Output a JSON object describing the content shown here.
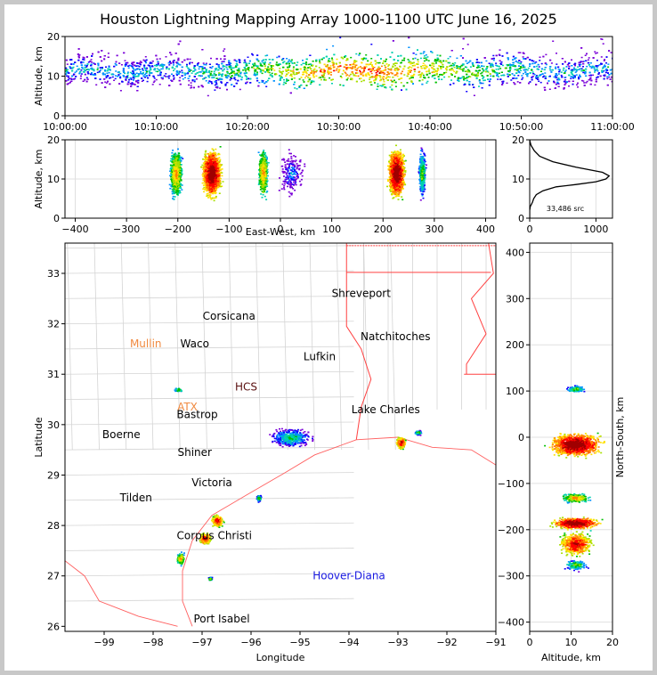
{
  "title": "Houston Lightning Mapping Array 1000-1100 UTC June 16, 2025",
  "chart_data": [
    {
      "type": "heatmap",
      "panel": "altitude-vs-time",
      "ylabel": "Altitude, km",
      "xlim": [
        "10:00:00",
        "11:00:00"
      ],
      "ylim": [
        0,
        20
      ],
      "x_ticks": [
        "10:00:00",
        "10:10:00",
        "10:20:00",
        "10:30:00",
        "10:40:00",
        "10:50:00",
        "11:00:00"
      ],
      "y_ticks": [
        "0",
        "10",
        "20"
      ],
      "band_altitude_km": [
        7,
        16
      ]
    },
    {
      "type": "heatmap",
      "panel": "altitude-vs-east-west",
      "xlabel": "East-West, km",
      "ylabel": "Altitude, km",
      "xlim": [
        -420,
        420
      ],
      "ylim": [
        0,
        20
      ],
      "x_ticks": [
        "−400",
        "−300",
        "−200",
        "−100",
        "0",
        "100",
        "200",
        "300",
        "400"
      ],
      "y_ticks": [
        "0",
        "10",
        "20"
      ],
      "cells_ew_km": [
        -205,
        -135,
        -35,
        225,
        275,
        20
      ]
    },
    {
      "type": "line",
      "panel": "altitude-histogram",
      "annotation": "33,486 src",
      "xlim": [
        0,
        1250
      ],
      "ylim": [
        0,
        20
      ],
      "x_ticks": [
        "0",
        "1000"
      ],
      "y_ticks": [
        "0",
        "10",
        "20"
      ],
      "x": [
        0,
        0,
        10,
        40,
        60,
        100,
        200,
        400,
        700,
        1000,
        1150,
        1200,
        1100,
        700,
        350,
        150,
        70,
        20,
        5,
        0
      ],
      "y": [
        0,
        2,
        3,
        4,
        5,
        6,
        7,
        8,
        8.6,
        9.3,
        10,
        10.8,
        11.7,
        13,
        14.4,
        15.8,
        17.2,
        18.6,
        19.5,
        20
      ]
    },
    {
      "type": "scatter",
      "panel": "plan-view-map",
      "xlabel": "Longitude",
      "ylabel": "Latitude",
      "xlim": [
        -99.8,
        -91
      ],
      "ylim": [
        25.9,
        33.6
      ],
      "x_ticks": [
        "−99",
        "−98",
        "−97",
        "−96",
        "−95",
        "−94",
        "−93",
        "−92",
        "−91"
      ],
      "y_ticks": [
        "26",
        "27",
        "28",
        "29",
        "30",
        "31",
        "32",
        "33"
      ],
      "cities": [
        {
          "name": "Shreveport",
          "lon": -93.75,
          "lat": 32.6,
          "color": "#000000"
        },
        {
          "name": "Corsicana",
          "lon": -96.45,
          "lat": 32.15,
          "color": "#000000"
        },
        {
          "name": "Natchitoches",
          "lon": -93.05,
          "lat": 31.75,
          "color": "#000000"
        },
        {
          "name": "Mullin",
          "lon": -98.15,
          "lat": 31.6,
          "color": "#f08a40"
        },
        {
          "name": "Waco",
          "lon": -97.15,
          "lat": 31.6,
          "color": "#000000"
        },
        {
          "name": "Lufkin",
          "lon": -94.6,
          "lat": 31.35,
          "color": "#000000"
        },
        {
          "name": "HCS",
          "lon": -96.1,
          "lat": 30.75,
          "color": "#5a1010"
        },
        {
          "name": "ATX",
          "lon": -97.3,
          "lat": 30.35,
          "color": "#f08a40"
        },
        {
          "name": "Bastrop",
          "lon": -97.1,
          "lat": 30.2,
          "color": "#000000"
        },
        {
          "name": "Lake Charles",
          "lon": -93.25,
          "lat": 30.3,
          "color": "#000000"
        },
        {
          "name": "Boerne",
          "lon": -98.65,
          "lat": 29.8,
          "color": "#000000"
        },
        {
          "name": "Shiner",
          "lon": -97.15,
          "lat": 29.45,
          "color": "#000000"
        },
        {
          "name": "Victoria",
          "lon": -96.8,
          "lat": 28.85,
          "color": "#000000"
        },
        {
          "name": "Tilden",
          "lon": -98.35,
          "lat": 28.55,
          "color": "#000000"
        },
        {
          "name": "Corpus Christi",
          "lon": -96.75,
          "lat": 27.8,
          "color": "#000000"
        },
        {
          "name": "Hoover-Diana",
          "lon": -94.0,
          "lat": 27.0,
          "color": "#1818e0"
        },
        {
          "name": "Port Isabel",
          "lon": -96.6,
          "lat": 26.15,
          "color": "#000000"
        }
      ],
      "lightning_cells": [
        {
          "lon": -95.2,
          "lat": 29.75
        },
        {
          "lon": -92.95,
          "lat": 29.65
        },
        {
          "lon": -92.6,
          "lat": 29.85
        },
        {
          "lon": -96.7,
          "lat": 28.1
        },
        {
          "lon": -96.95,
          "lat": 27.75
        },
        {
          "lon": -97.45,
          "lat": 27.35
        },
        {
          "lon": -95.85,
          "lat": 28.55
        },
        {
          "lon": -97.5,
          "lat": 30.7
        },
        {
          "lon": -96.85,
          "lat": 26.95
        }
      ]
    },
    {
      "type": "heatmap",
      "panel": "north-south-vs-altitude",
      "xlabel": "Altitude, km",
      "ylabel": "North-South, km",
      "xlim": [
        0,
        20
      ],
      "ylim": [
        -420,
        420
      ],
      "x_ticks": [
        "0",
        "10",
        "20"
      ],
      "y_ticks": [
        "−400",
        "−300",
        "−200",
        "−100",
        "0",
        "100",
        "200",
        "300",
        "400"
      ],
      "cells_ns_km": [
        105,
        -15,
        -130,
        -185,
        -230,
        -275
      ]
    }
  ]
}
